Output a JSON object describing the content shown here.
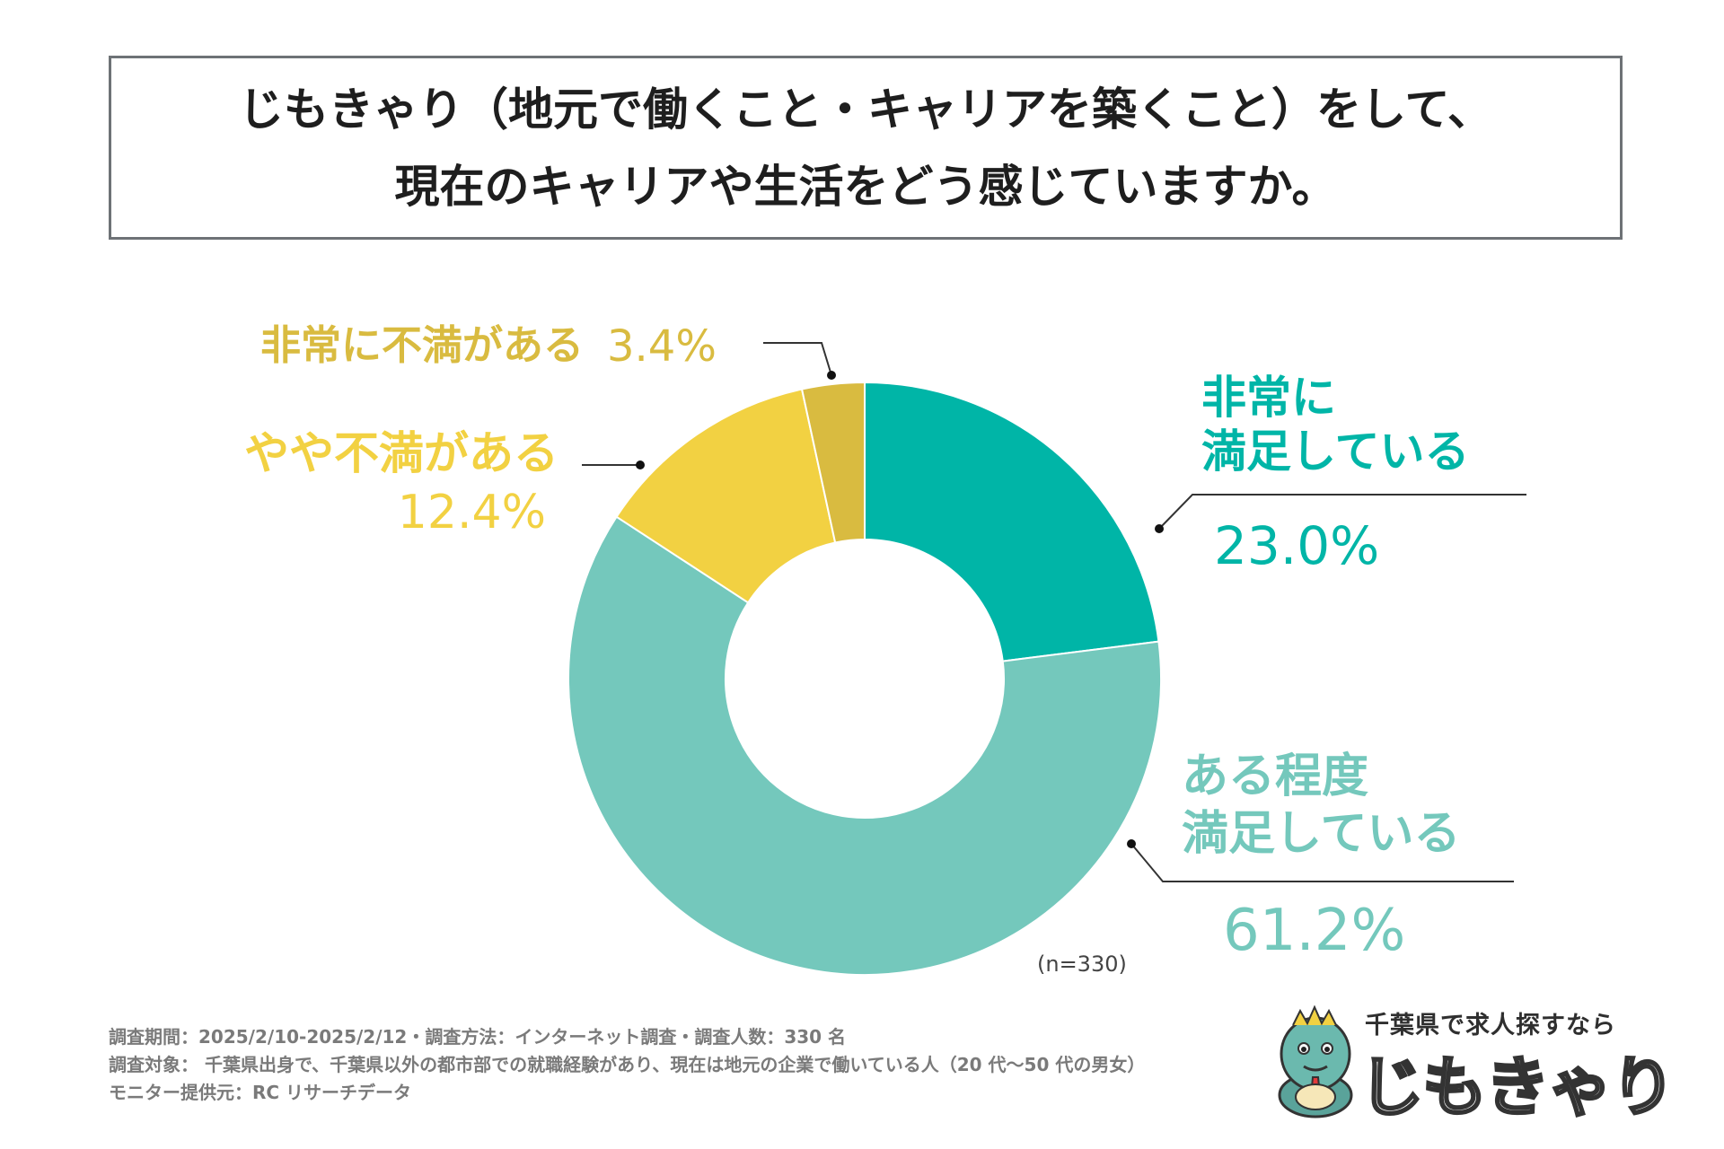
{
  "title": {
    "line1": "じもきゃり（地元で働くこと・キャリアを築くこと）をして、",
    "line2": "現在のキャリアや生活をどう感じていますか。"
  },
  "chart_data": {
    "type": "pie",
    "donut": true,
    "n_label": "(n=330)",
    "slices": [
      {
        "id": "very-satisfied",
        "label_lines": [
          "非常に",
          "満足している"
        ],
        "value": 23.0,
        "value_label": "23.0%",
        "color": "#00b5a7"
      },
      {
        "id": "somewhat-satisfied",
        "label_lines": [
          "ある程度",
          "満足している"
        ],
        "value": 61.2,
        "value_label": "61.2%",
        "color": "#74c8bc"
      },
      {
        "id": "somewhat-dissatisfied",
        "label_lines": [
          "やや不満がある"
        ],
        "value": 12.4,
        "value_label": "12.4%",
        "color": "#f2d142"
      },
      {
        "id": "very-dissatisfied",
        "label_lines": [
          "非常に不満がある"
        ],
        "value": 3.4,
        "value_label": "3.4%",
        "color": "#d9bb40"
      }
    ]
  },
  "footer": {
    "line1": "調査期間：2025/2/10-2025/2/12・調査方法：インターネット調査・調査人数：330 名",
    "line2": "調査対象： 千葉県出身で、千葉県以外の都市部での就職経験があり、現在は地元の企業で働いている人（20 代〜50 代の男女）",
    "line3": "モニター提供元：RC リサーチデータ"
  },
  "logo": {
    "subtitle": "千葉県で求人探すなら",
    "name": "じもきゃり"
  }
}
